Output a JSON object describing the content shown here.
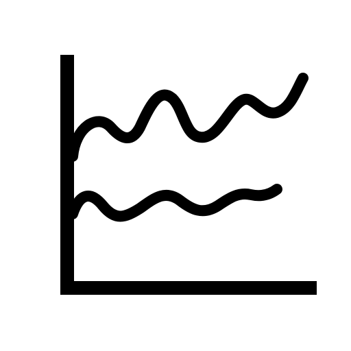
{
  "icon": {
    "name": "multi-line-chart-icon",
    "stroke_color": "#000000",
    "background_color": "#ffffff",
    "lines": [
      {
        "name": "upper-wave-line"
      },
      {
        "name": "lower-wave-line"
      }
    ]
  }
}
